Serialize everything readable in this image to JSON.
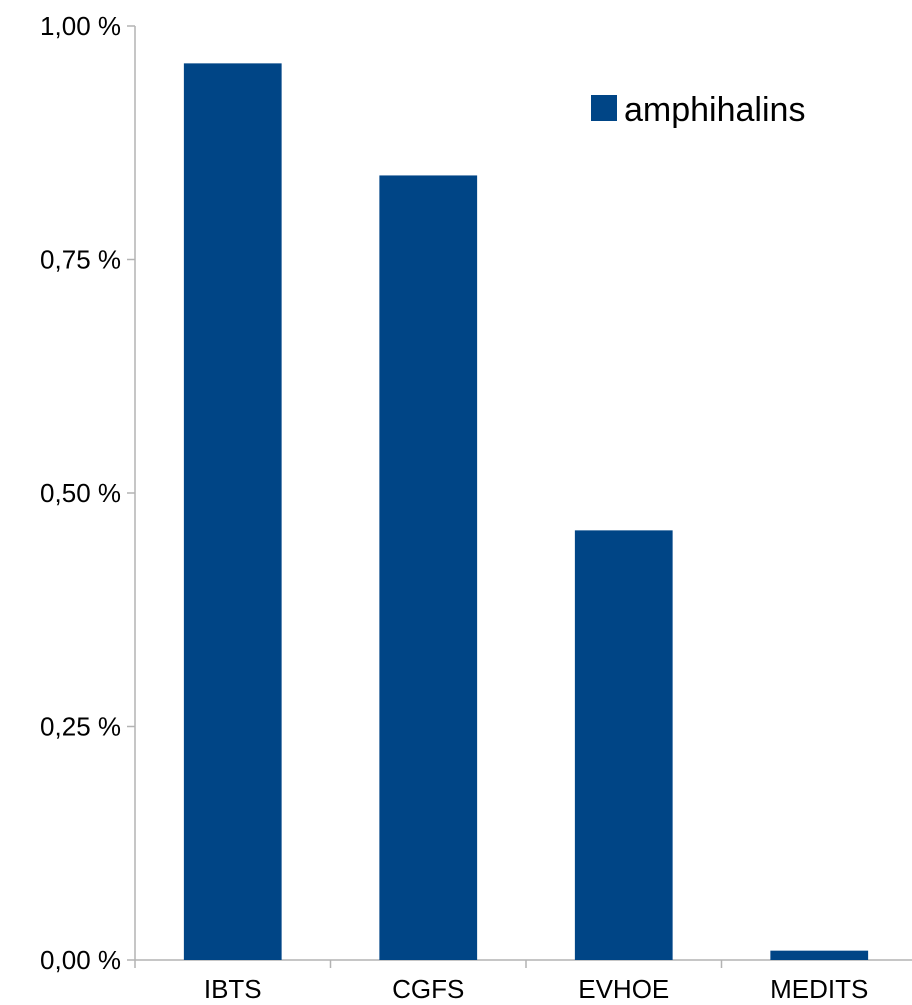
{
  "chart_data": {
    "type": "bar",
    "title": "",
    "xlabel": "",
    "ylabel": "",
    "categories": [
      "IBTS",
      "CGFS",
      "EVHOE",
      "MEDITS"
    ],
    "series": [
      {
        "name": "amphihalins",
        "values": [
          0.96,
          0.84,
          0.46,
          0.01
        ]
      }
    ],
    "ylim": [
      0,
      1.0
    ],
    "yticks": [
      0,
      0.25,
      0.5,
      0.75,
      1.0
    ],
    "ytick_labels": [
      "0,00 %",
      "0,25 %",
      "0,50 %",
      "0,75 %",
      "1,00 %"
    ],
    "grid": false,
    "legend_position": "top-right",
    "colors": {
      "bar": "#004586",
      "axis": "#b3b3b3"
    }
  }
}
